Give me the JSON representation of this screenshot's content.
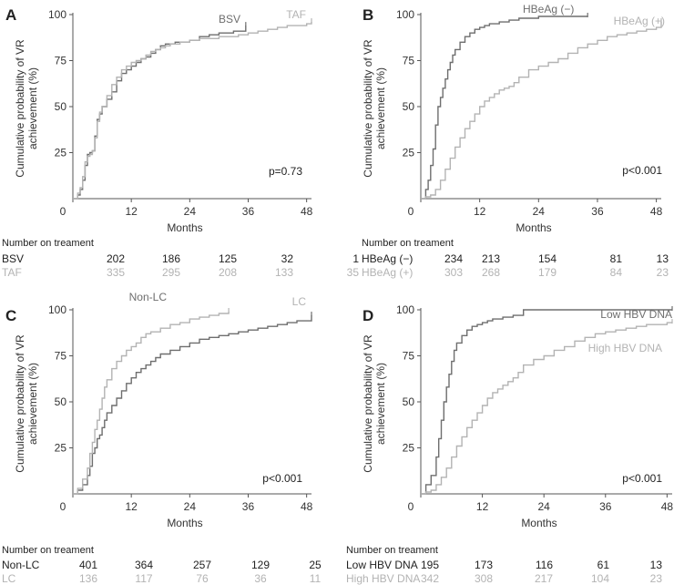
{
  "chart_data": [
    {
      "panel": "A",
      "type": "line",
      "subtype": "kaplan-meier",
      "xlabel": "Months",
      "ylabel_line1": "Cumulative probability of VR",
      "ylabel_line2": "achievement (%)",
      "xticks": [
        0,
        12,
        24,
        36,
        48
      ],
      "yticks": [
        25,
        50,
        75,
        100
      ],
      "origin_label": "0",
      "xlim": [
        0,
        49
      ],
      "ylim": [
        0,
        100
      ],
      "pvalue": "p=0.73",
      "risk_title": "Number on treament",
      "series": [
        {
          "name": "BSV",
          "color": "#6e6e6e",
          "risk": [
            "202",
            "186",
            "125",
            "32",
            "1"
          ],
          "x": [
            0,
            1,
            1.5,
            2,
            2.5,
            3,
            3.5,
            4,
            4.5,
            5,
            5.5,
            6,
            7,
            8,
            9,
            10,
            11,
            12,
            13,
            14,
            15,
            16,
            17,
            18,
            19,
            20,
            21,
            22,
            24,
            26,
            28,
            30,
            31,
            33,
            35,
            35.5
          ],
          "y": [
            0,
            2,
            5,
            10,
            18,
            24,
            25,
            26,
            34,
            43,
            46,
            50,
            54,
            58,
            64,
            68,
            70,
            72,
            74,
            76,
            77,
            79,
            81,
            83,
            84,
            84,
            85,
            85,
            86,
            88,
            89,
            90,
            90,
            91,
            91,
            94
          ]
        },
        {
          "name": "TAF",
          "color": "#b3b3b3",
          "risk": [
            "335",
            "295",
            "208",
            "133",
            "35"
          ],
          "x": [
            0,
            1,
            1.5,
            2,
            2.5,
            3,
            3.5,
            4,
            4.5,
            5,
            5.5,
            6,
            7,
            8,
            9,
            10,
            11,
            12,
            13,
            14,
            15,
            16,
            17,
            18,
            19,
            20,
            21,
            22,
            24,
            26,
            28,
            30,
            32,
            34,
            36,
            38,
            40,
            42,
            44,
            46,
            48,
            49
          ],
          "y": [
            0,
            3,
            6,
            12,
            20,
            23,
            24,
            26,
            33,
            42,
            47,
            50,
            56,
            62,
            66,
            70,
            72,
            74,
            75,
            76,
            78,
            80,
            81,
            82,
            83,
            84,
            84,
            85,
            86,
            87,
            87,
            88,
            88,
            89,
            90,
            91,
            92,
            93,
            94,
            94,
            95,
            96
          ]
        }
      ]
    },
    {
      "panel": "B",
      "type": "line",
      "subtype": "kaplan-meier",
      "xlabel": "Months",
      "ylabel_line1": "Cumulative probability of VR",
      "ylabel_line2": "achievement (%)",
      "xticks": [
        0,
        12,
        24,
        36,
        48
      ],
      "yticks": [
        25,
        50,
        75,
        100
      ],
      "origin_label": "0",
      "xlim": [
        0,
        49
      ],
      "ylim": [
        0,
        100
      ],
      "pvalue": "p<0.001",
      "risk_title": "Number on treament",
      "series": [
        {
          "name": "HBeAg (−)",
          "color": "#6e6e6e",
          "risk": [
            "234",
            "213",
            "154",
            "81",
            "13"
          ],
          "x": [
            0,
            1,
            1.5,
            2,
            2.5,
            3,
            3.5,
            4,
            4.5,
            5,
            5.5,
            6,
            6.5,
            7,
            8,
            9,
            10,
            11,
            12,
            13,
            14,
            16,
            18,
            20,
            22,
            24,
            26,
            28,
            30,
            32,
            34
          ],
          "y": [
            0,
            5,
            10,
            18,
            27,
            40,
            50,
            55,
            60,
            65,
            70,
            74,
            78,
            81,
            85,
            88,
            90,
            92,
            93,
            94,
            95,
            96,
            97,
            98,
            98,
            99,
            99,
            99,
            99,
            99,
            99
          ]
        },
        {
          "name": "HBeAg (+)",
          "color": "#b3b3b3",
          "risk": [
            "303",
            "268",
            "179",
            "84",
            "23"
          ],
          "x": [
            0,
            1,
            2,
            3,
            4,
            5,
            6,
            7,
            8,
            9,
            10,
            11,
            12,
            13,
            14,
            15,
            16,
            17,
            18,
            19,
            20,
            22,
            24,
            26,
            28,
            30,
            32,
            34,
            36,
            38,
            40,
            42,
            44,
            46,
            48,
            49
          ],
          "y": [
            0,
            1,
            2,
            5,
            10,
            16,
            22,
            28,
            33,
            38,
            42,
            46,
            50,
            53,
            55,
            57,
            59,
            60,
            61,
            63,
            66,
            70,
            72,
            74,
            76,
            79,
            82,
            84,
            86,
            88,
            89,
            90,
            91,
            92,
            93,
            96
          ]
        }
      ]
    },
    {
      "panel": "C",
      "type": "line",
      "subtype": "kaplan-meier",
      "xlabel": "Months",
      "ylabel_line1": "Cumulative probability of VR",
      "ylabel_line2": "achievement (%)",
      "xticks": [
        0,
        12,
        24,
        36,
        48
      ],
      "yticks": [
        25,
        50,
        75,
        100
      ],
      "origin_label": "0",
      "xlim": [
        0,
        49
      ],
      "ylim": [
        0,
        100
      ],
      "pvalue": "p<0.001",
      "risk_title": "Number on treament",
      "series": [
        {
          "name": "Non-LC",
          "color": "#6e6e6e",
          "risk": [
            "401",
            "364",
            "257",
            "129",
            "25"
          ],
          "x": [
            0,
            1,
            2,
            3,
            3.5,
            4,
            4.5,
            5,
            5.5,
            6,
            6.5,
            7,
            8,
            9,
            10,
            11,
            12,
            13,
            14,
            15,
            16,
            17,
            18,
            20,
            22,
            24,
            26,
            28,
            30,
            32,
            34,
            36,
            38,
            40,
            42,
            44,
            46,
            48,
            49
          ],
          "y": [
            0,
            2,
            5,
            10,
            15,
            22,
            25,
            30,
            32,
            36,
            40,
            44,
            48,
            52,
            56,
            60,
            63,
            66,
            68,
            70,
            72,
            74,
            76,
            78,
            80,
            82,
            84,
            85,
            86,
            87,
            88,
            89,
            90,
            91,
            92,
            93,
            94,
            94,
            97
          ]
        },
        {
          "name": "LC",
          "color": "#b3b3b3",
          "risk": [
            "136",
            "117",
            "76",
            "36",
            "11"
          ],
          "x": [
            0,
            1,
            2,
            3,
            3.5,
            4,
            4.5,
            5,
            5.5,
            6,
            6.5,
            7,
            8,
            9,
            10,
            11,
            12,
            13,
            14,
            15,
            16,
            18,
            20,
            22,
            24,
            26,
            28,
            30,
            32
          ],
          "y": [
            0,
            3,
            8,
            14,
            22,
            28,
            35,
            40,
            46,
            52,
            58,
            62,
            68,
            72,
            75,
            78,
            80,
            82,
            85,
            87,
            88,
            90,
            92,
            93,
            95,
            96,
            97,
            98,
            99
          ]
        }
      ]
    },
    {
      "panel": "D",
      "type": "line",
      "subtype": "kaplan-meier",
      "xlabel": "Months",
      "ylabel_line1": "Cumulative probability of VR",
      "ylabel_line2": "achievement (%)",
      "xticks": [
        0,
        12,
        24,
        36,
        48
      ],
      "yticks": [
        25,
        50,
        75,
        100
      ],
      "origin_label": "0",
      "xlim": [
        0,
        49
      ],
      "ylim": [
        0,
        100
      ],
      "pvalue": "p<0.001",
      "risk_title": "Number on treament",
      "series": [
        {
          "name": "Low HBV DNA",
          "color": "#6e6e6e",
          "risk": [
            "195",
            "173",
            "116",
            "61",
            "13"
          ],
          "x": [
            0,
            1,
            2,
            3,
            3.5,
            4,
            4.5,
            5,
            5.5,
            6,
            6.5,
            7,
            8,
            9,
            10,
            11,
            12,
            13,
            14,
            16,
            18,
            20,
            24,
            28,
            32,
            36,
            40,
            44,
            48,
            49
          ],
          "y": [
            0,
            5,
            10,
            20,
            30,
            40,
            50,
            58,
            65,
            72,
            78,
            82,
            86,
            89,
            91,
            92,
            93,
            94,
            95,
            96,
            97,
            100,
            100,
            100,
            100,
            100,
            100,
            100,
            100,
            100
          ]
        },
        {
          "name": "High HBV DNA",
          "color": "#b3b3b3",
          "risk": [
            "342",
            "308",
            "217",
            "104",
            "23"
          ],
          "x": [
            0,
            1,
            2,
            3,
            4,
            5,
            6,
            7,
            8,
            9,
            10,
            11,
            12,
            13,
            14,
            15,
            16,
            17,
            18,
            19,
            20,
            22,
            24,
            26,
            28,
            30,
            32,
            34,
            36,
            38,
            40,
            42,
            44,
            46,
            48,
            49
          ],
          "y": [
            0,
            1,
            2,
            5,
            9,
            14,
            20,
            26,
            31,
            36,
            40,
            44,
            48,
            52,
            55,
            57,
            59,
            61,
            63,
            66,
            70,
            73,
            75,
            78,
            80,
            83,
            85,
            87,
            88,
            89,
            90,
            91,
            92,
            92,
            93,
            93
          ]
        }
      ]
    }
  ]
}
